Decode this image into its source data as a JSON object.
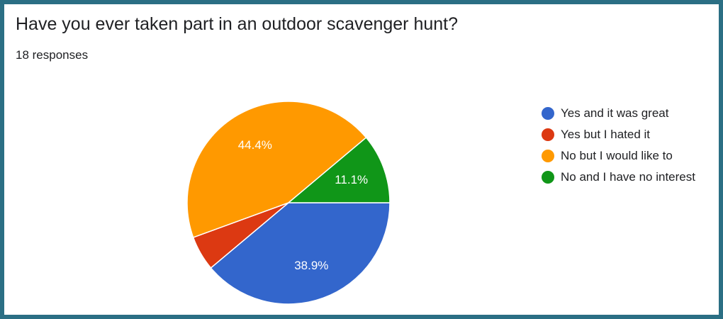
{
  "card": {
    "title": "Have you ever taken part in an outdoor scavenger hunt?",
    "responses": "18 responses"
  },
  "chart_data": {
    "type": "pie",
    "title": "Have you ever taken part in an outdoor scavenger hunt?",
    "total_responses": 18,
    "legend_position": "right",
    "slices": [
      {
        "label": "Yes and it was great",
        "value": 7,
        "percent_label": "38.9%",
        "color": "#3366cc"
      },
      {
        "label": "Yes but I hated it",
        "value": 1,
        "percent_label": "",
        "color": "#dc3912"
      },
      {
        "label": "No but I would like to",
        "value": 8,
        "percent_label": "44.4%",
        "color": "#ff9900"
      },
      {
        "label": "No and I have no interest",
        "value": 2,
        "percent_label": "11.1%",
        "color": "#109618"
      }
    ]
  }
}
